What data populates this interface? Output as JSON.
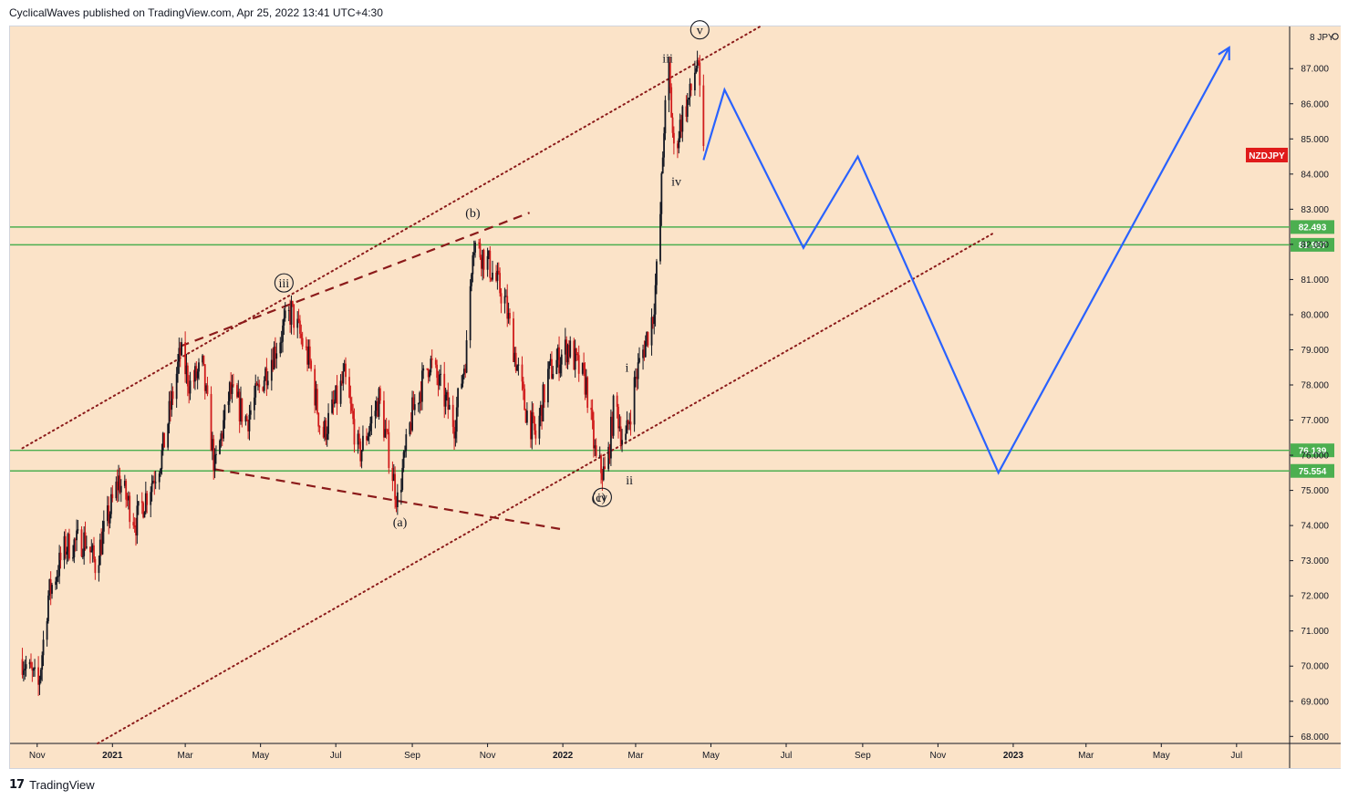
{
  "header": {
    "publish_line": "CyclicalWaves published on TradingView.com, Apr 25, 2022 13:41 UTC+4:30"
  },
  "footer": {
    "brand": "TradingView",
    "logo_icon": "tradingview-logo-icon"
  },
  "colors": {
    "background": "#fbe3c8",
    "candle_up": "#131722",
    "candle_down": "#d01c1c",
    "support_resistance": "#4caf50",
    "channel": "#8b1a1a",
    "projection": "#2962ff",
    "symbol_badge": "#e01b1b"
  },
  "chart_data": {
    "type": "candlestick",
    "symbol": "NZDJPY",
    "currency_label": "JPY",
    "y_top_label": "8",
    "ylim": [
      67.8,
      88.2
    ],
    "y_ticks": [
      "68.000",
      "69.000",
      "70.000",
      "71.000",
      "72.000",
      "73.000",
      "74.000",
      "75.000",
      "76.000",
      "77.000",
      "78.000",
      "79.000",
      "80.000",
      "81.000",
      "82.000",
      "83.000",
      "84.000",
      "85.000",
      "86.000",
      "87.000"
    ],
    "x_ticks": [
      {
        "label": "Nov",
        "date": "2020-11-01",
        "bold": false
      },
      {
        "label": "2021",
        "date": "2021-01-01",
        "bold": true
      },
      {
        "label": "Mar",
        "date": "2021-03-01",
        "bold": false
      },
      {
        "label": "May",
        "date": "2021-05-01",
        "bold": false
      },
      {
        "label": "Jul",
        "date": "2021-07-01",
        "bold": false
      },
      {
        "label": "Sep",
        "date": "2021-09-01",
        "bold": false
      },
      {
        "label": "Nov",
        "date": "2021-11-01",
        "bold": false
      },
      {
        "label": "2022",
        "date": "2022-01-01",
        "bold": true
      },
      {
        "label": "Mar",
        "date": "2022-03-01",
        "bold": false
      },
      {
        "label": "May",
        "date": "2022-05-01",
        "bold": false
      },
      {
        "label": "Jul",
        "date": "2022-07-01",
        "bold": false
      },
      {
        "label": "Sep",
        "date": "2022-09-01",
        "bold": false
      },
      {
        "label": "Nov",
        "date": "2022-11-01",
        "bold": false
      },
      {
        "label": "2023",
        "date": "2023-01-01",
        "bold": true
      },
      {
        "label": "Mar",
        "date": "2023-03-01",
        "bold": false
      },
      {
        "label": "May",
        "date": "2023-05-01",
        "bold": false
      },
      {
        "label": "Jul",
        "date": "2023-07-01",
        "bold": false
      }
    ],
    "price_path": [
      [
        "2020-10-20",
        70.2
      ],
      [
        "2020-11-02",
        69.4
      ],
      [
        "2020-11-10",
        72.0
      ],
      [
        "2020-11-24",
        73.4
      ],
      [
        "2020-12-10",
        73.6
      ],
      [
        "2020-12-18",
        72.9
      ],
      [
        "2021-01-06",
        75.3
      ],
      [
        "2021-01-20",
        74.1
      ],
      [
        "2021-02-10",
        76.0
      ],
      [
        "2021-02-25",
        78.9
      ],
      [
        "2021-03-05",
        78.0
      ],
      [
        "2021-03-15",
        78.5
      ],
      [
        "2021-03-25",
        75.6
      ],
      [
        "2021-04-06",
        77.8
      ],
      [
        "2021-04-20",
        77.0
      ],
      [
        "2021-05-10",
        78.8
      ],
      [
        "2021-05-26",
        80.1
      ],
      [
        "2021-06-10",
        78.6
      ],
      [
        "2021-06-20",
        76.5
      ],
      [
        "2021-07-08",
        78.2
      ],
      [
        "2021-07-20",
        76.0
      ],
      [
        "2021-08-05",
        77.6
      ],
      [
        "2021-08-20",
        74.7
      ],
      [
        "2021-09-01",
        77.2
      ],
      [
        "2021-09-15",
        78.7
      ],
      [
        "2021-10-05",
        76.9
      ],
      [
        "2021-10-15",
        79.0
      ],
      [
        "2021-10-20",
        82.1
      ],
      [
        "2021-11-01",
        81.5
      ],
      [
        "2021-11-15",
        80.4
      ],
      [
        "2021-12-01",
        77.4
      ],
      [
        "2021-12-10",
        76.5
      ],
      [
        "2021-12-20",
        78.3
      ],
      [
        "2022-01-05",
        79.1
      ],
      [
        "2022-01-20",
        78.0
      ],
      [
        "2022-01-28",
        75.8
      ],
      [
        "2022-02-05",
        75.4
      ],
      [
        "2022-02-12",
        77.6
      ],
      [
        "2022-02-20",
        76.2
      ],
      [
        "2022-03-01",
        78.2
      ],
      [
        "2022-03-15",
        80.0
      ],
      [
        "2022-03-20",
        82.0
      ],
      [
        "2022-03-24",
        85.4
      ],
      [
        "2022-03-28",
        86.9
      ],
      [
        "2022-04-01",
        84.6
      ],
      [
        "2022-04-08",
        85.7
      ],
      [
        "2022-04-14",
        86.2
      ],
      [
        "2022-04-20",
        87.3
      ],
      [
        "2022-04-25",
        84.5
      ]
    ],
    "horizontal_levels": [
      {
        "value": 82.493,
        "label": "82.493"
      },
      {
        "value": 81.987,
        "label": "81.987"
      },
      {
        "value": 76.139,
        "label": "76.139"
      },
      {
        "value": 75.554,
        "label": "75.554"
      }
    ],
    "current_price_badge": "NZDJPY",
    "projection_path": [
      [
        "2022-04-25",
        84.4
      ],
      [
        "2022-05-12",
        86.4
      ],
      [
        "2022-07-15",
        81.9
      ],
      [
        "2022-08-28",
        84.5
      ],
      [
        "2022-12-20",
        75.5
      ],
      [
        "2023-06-25",
        87.6
      ]
    ],
    "channel_upper": [
      [
        "2020-10-20",
        76.2
      ],
      [
        "2022-06-10",
        88.2
      ]
    ],
    "channel_lower": [
      [
        "2020-12-20",
        67.8
      ],
      [
        "2022-12-15",
        82.3
      ]
    ],
    "dashed_upper": [
      [
        "2021-02-25",
        79.1
      ],
      [
        "2021-12-05",
        82.9
      ]
    ],
    "dashed_lower": [
      [
        "2021-03-25",
        75.6
      ],
      [
        "2021-12-30",
        73.9
      ]
    ],
    "wave_labels": [
      {
        "text": "iii",
        "date": "2021-05-20",
        "value": 80.8,
        "circled": true
      },
      {
        "text": "(a)",
        "date": "2021-08-22",
        "value": 74.0,
        "circled": false
      },
      {
        "text": "(b)",
        "date": "2021-10-20",
        "value": 82.8,
        "circled": false
      },
      {
        "text": "(c)",
        "date": "2022-01-30",
        "value": 74.7,
        "circled": false
      },
      {
        "text": "iv",
        "date": "2022-02-02",
        "value": 74.7,
        "circled": true
      },
      {
        "text": "i",
        "date": "2022-02-22",
        "value": 78.4,
        "circled": false
      },
      {
        "text": "ii",
        "date": "2022-02-24",
        "value": 75.2,
        "circled": false
      },
      {
        "text": "iii",
        "date": "2022-03-27",
        "value": 87.2,
        "circled": false
      },
      {
        "text": "iv",
        "date": "2022-04-03",
        "value": 83.7,
        "circled": false
      },
      {
        "text": "v",
        "date": "2022-04-22",
        "value": 88.0,
        "circled": true
      }
    ]
  }
}
